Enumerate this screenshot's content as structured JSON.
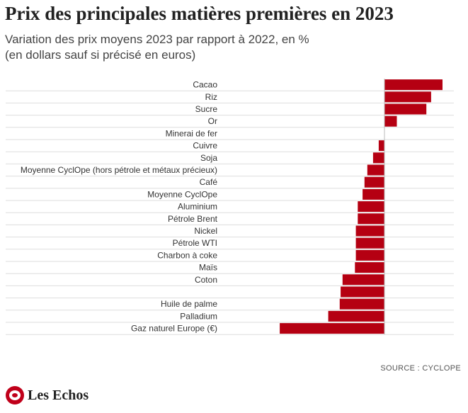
{
  "header": {
    "title": "Prix des principales matières premières en 2023",
    "subtitle_line1": "Variation des prix moyens 2023 par rapport à 2022, en %",
    "subtitle_line2": "(en dollars sauf si précisé en euros)"
  },
  "footer": {
    "source": "SOURCE : CYCLOPE",
    "brand": "Les Echos"
  },
  "colors": {
    "bar": "#b50012",
    "grid": "#dddddd",
    "axis": "#bbbbbb"
  },
  "chart_data": {
    "type": "bar",
    "orientation": "horizontal",
    "categories": [
      "Cacao",
      "Riz",
      "Sucre",
      "Or",
      "Minerai de fer",
      "Cuivre",
      "Soja",
      "Moyenne CyclOpe (hors pétrole et métaux précieux)",
      "Café",
      "Moyenne CyclOpe",
      "Aluminium",
      "Pétrole Brent",
      "Nickel",
      "Pétrole WTI",
      "Charbon à coke",
      "Maïs",
      "Coton",
      "",
      "Huile de palme",
      "Palladium",
      "Gaz naturel Europe (€)"
    ],
    "values": [
      61,
      49,
      44,
      13,
      0,
      -6,
      -12,
      -18,
      -21,
      -23,
      -28,
      -28,
      -30,
      -30,
      -30,
      -31,
      -44,
      -46,
      -47,
      -59,
      -110
    ],
    "xlim": [
      -115,
      65
    ],
    "grid": true,
    "legend": "none"
  }
}
